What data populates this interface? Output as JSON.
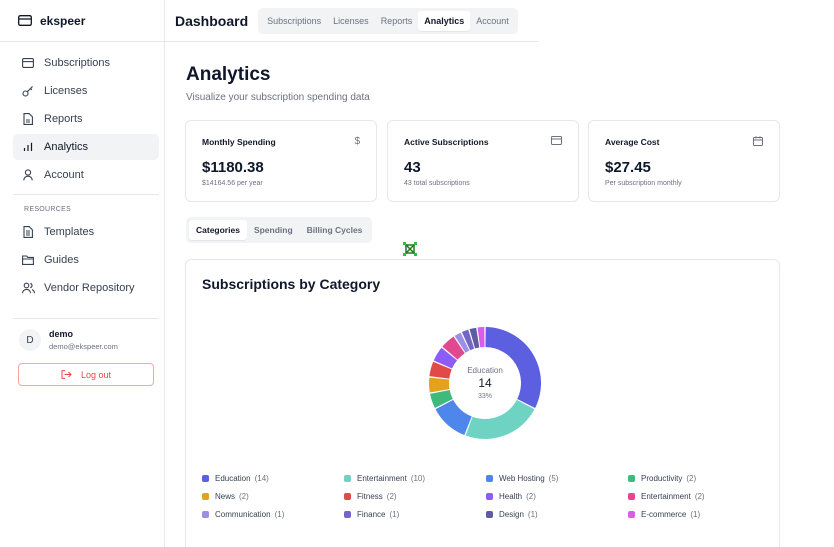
{
  "app": {
    "name": "ekspeer"
  },
  "sidebar": {
    "items": [
      {
        "label": "Subscriptions",
        "icon": "card-icon"
      },
      {
        "label": "Licenses",
        "icon": "key-icon"
      },
      {
        "label": "Reports",
        "icon": "file-icon"
      },
      {
        "label": "Analytics",
        "icon": "bar-chart-icon",
        "active": true
      },
      {
        "label": "Account",
        "icon": "user-icon"
      }
    ],
    "resources_title": "RESOURCES",
    "resources": [
      {
        "label": "Templates",
        "icon": "document-icon"
      },
      {
        "label": "Guides",
        "icon": "folder-icon"
      },
      {
        "label": "Vendor Repository",
        "icon": "users-icon"
      }
    ],
    "user": {
      "initial": "D",
      "name": "demo",
      "email": "demo@ekspeer.com"
    },
    "logout_label": "Log out"
  },
  "topbar": {
    "title": "Dashboard",
    "nav": [
      "Subscriptions",
      "Licenses",
      "Reports",
      "Analytics",
      "Account"
    ],
    "active": "Analytics"
  },
  "page": {
    "title": "Analytics",
    "subtitle": "Visualize your subscription spending data"
  },
  "cards": [
    {
      "label": "Monthly Spending",
      "value": "$1180.38",
      "sub": "$14164.56 per year",
      "icon": "dollar-icon"
    },
    {
      "label": "Active Subscriptions",
      "value": "43",
      "sub": "43 total subscriptions",
      "icon": "credit-card-icon"
    },
    {
      "label": "Average Cost",
      "value": "$27.45",
      "sub": "Per subscription monthly",
      "icon": "calendar-icon"
    }
  ],
  "tabs": [
    "Categories",
    "Spending",
    "Billing Cycles"
  ],
  "active_tab": "Categories",
  "chart": {
    "title": "Subscriptions by Category",
    "center": {
      "label": "Education",
      "value": "14",
      "percent": "33%"
    }
  },
  "chart_data": {
    "type": "pie",
    "title": "Subscriptions by Category",
    "categories": [
      "Education",
      "Entertainment",
      "Web Hosting",
      "Productivity",
      "News",
      "Fitness",
      "Health",
      "Entertainment",
      "Communication",
      "Finance",
      "Design",
      "E-commerce"
    ],
    "values": [
      14,
      10,
      5,
      2,
      2,
      2,
      2,
      2,
      1,
      1,
      1,
      1
    ],
    "colors": [
      "#5b5fe0",
      "#6ed3c3",
      "#4f86ec",
      "#3fba7c",
      "#e2a21b",
      "#e24a4a",
      "#8b5cf6",
      "#e0488f",
      "#9b8fe8",
      "#7565c4",
      "#5e5aa6",
      "#d85ee6"
    ],
    "legend": [
      {
        "label": "Education",
        "count": "(14)"
      },
      {
        "label": "Entertainment",
        "count": "(10)"
      },
      {
        "label": "Web Hosting",
        "count": "(5)"
      },
      {
        "label": "Productivity",
        "count": "(2)"
      },
      {
        "label": "News",
        "count": "(2)"
      },
      {
        "label": "Fitness",
        "count": "(2)"
      },
      {
        "label": "Health",
        "count": "(2)"
      },
      {
        "label": "Entertainment",
        "count": "(2)"
      },
      {
        "label": "Communication",
        "count": "(1)"
      },
      {
        "label": "Finance",
        "count": "(1)"
      },
      {
        "label": "Design",
        "count": "(1)"
      },
      {
        "label": "E-commerce",
        "count": "(1)"
      }
    ]
  }
}
